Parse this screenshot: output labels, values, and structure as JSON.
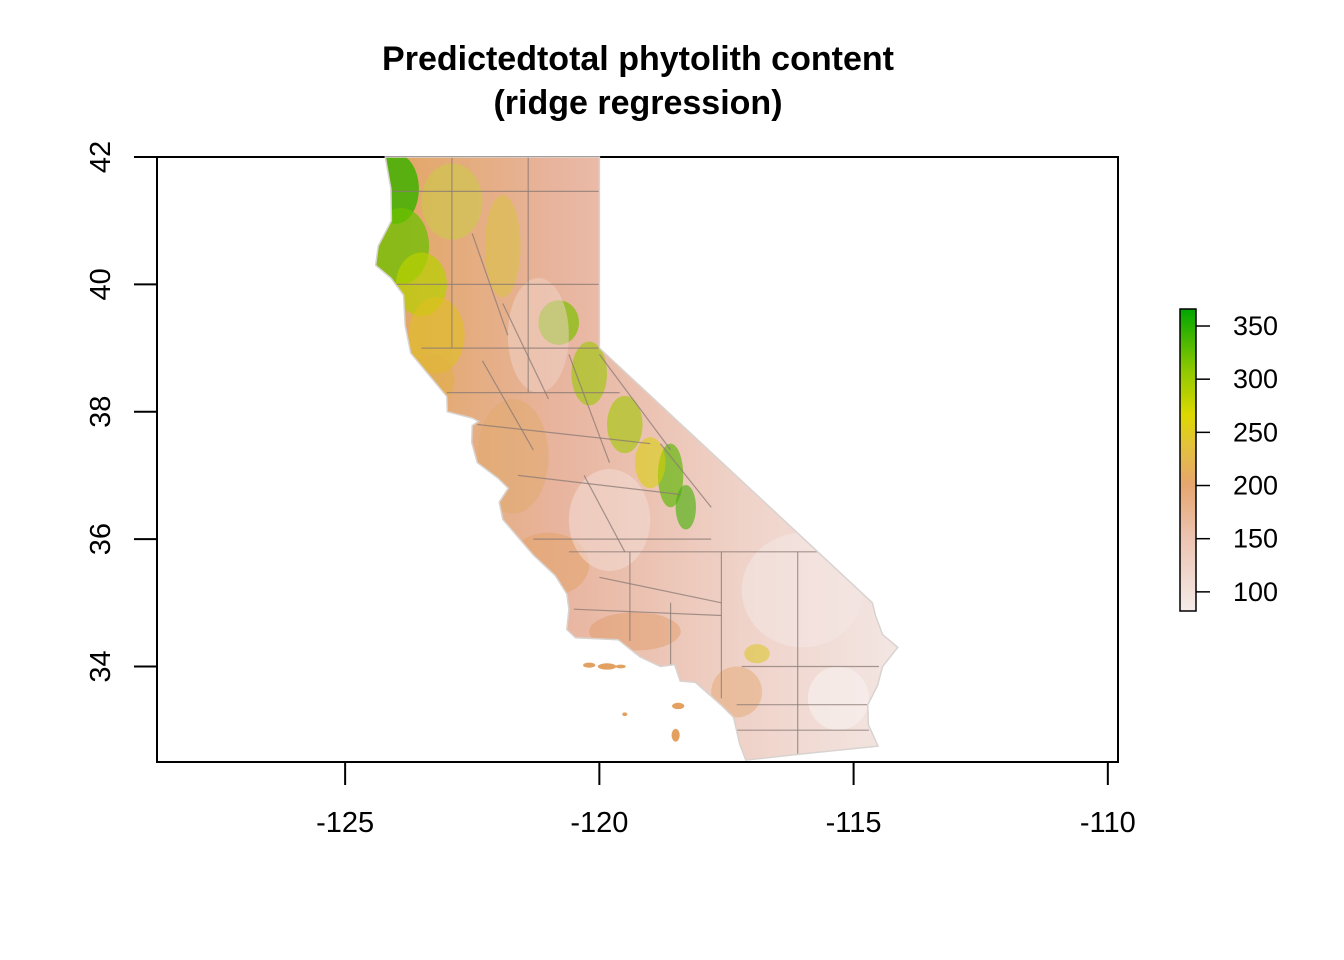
{
  "title_line1": "Predictedtotal phytolith content",
  "title_line2": "(ridge regression)",
  "x_axis": {
    "ticks": [
      {
        "value": -125,
        "label": "-125"
      },
      {
        "value": -120,
        "label": "-120"
      },
      {
        "value": -115,
        "label": "-115"
      },
      {
        "value": -110,
        "label": "-110"
      }
    ],
    "range": [
      -128.7,
      -109.8
    ]
  },
  "y_axis": {
    "ticks": [
      {
        "value": 34,
        "label": "34"
      },
      {
        "value": 36,
        "label": "36"
      },
      {
        "value": 38,
        "label": "38"
      },
      {
        "value": 40,
        "label": "40"
      },
      {
        "value": 42,
        "label": "42"
      }
    ],
    "range": [
      32.5,
      42.0
    ]
  },
  "legend": {
    "range": [
      82,
      366
    ],
    "ticks": [
      {
        "value": 100,
        "label": "100"
      },
      {
        "value": 150,
        "label": "150"
      },
      {
        "value": 200,
        "label": "200"
      },
      {
        "value": 250,
        "label": "250"
      },
      {
        "value": 300,
        "label": "300"
      },
      {
        "value": 350,
        "label": "350"
      }
    ],
    "colors": [
      "#f5ebe8",
      "#edc9b8",
      "#e8a878",
      "#e4b33a",
      "#e0d800",
      "#9ecb00",
      "#4cb800",
      "#00a600"
    ]
  }
}
